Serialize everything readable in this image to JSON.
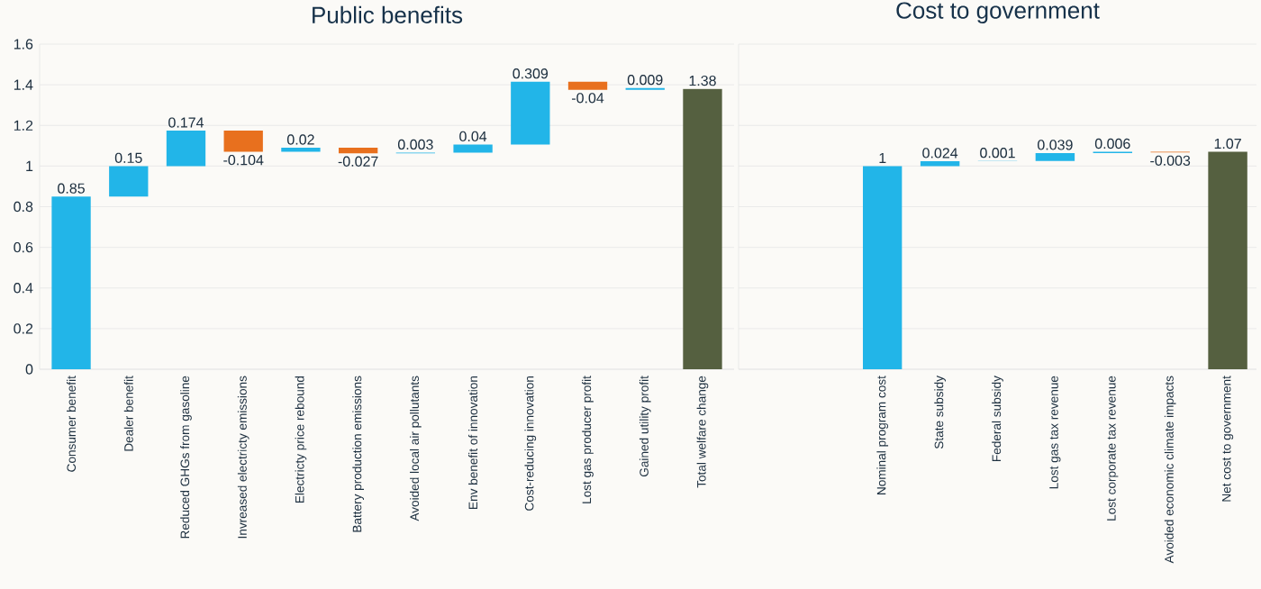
{
  "chart_data": [
    {
      "type": "bar",
      "title": "Public benefits",
      "categories": [
        "Consumer benefit",
        "Dealer benefit",
        "Reduced GHGs from gasoline",
        "Invreased electricty emissions",
        "Electricty price rebound",
        "Battery production emissions",
        "Avoided local air pollutants",
        "Env benefit of innovation",
        "Cost-reducing innovation",
        "Lost gas producer profit",
        "Gained utility profit",
        "Total welfare change"
      ],
      "values": [
        0.85,
        0.15,
        0.174,
        -0.104,
        0.02,
        -0.027,
        0.003,
        0.04,
        0.309,
        -0.04,
        0.009,
        1.38
      ],
      "base": [
        0,
        0.85,
        1.0,
        1.174,
        1.07,
        1.09,
        1.063,
        1.066,
        1.106,
        1.415,
        1.375,
        0
      ],
      "colors": [
        "#22b5e8",
        "#22b5e8",
        "#22b5e8",
        "#e8701e",
        "#22b5e8",
        "#e8701e",
        "#22b5e8",
        "#22b5e8",
        "#22b5e8",
        "#e8701e",
        "#22b5e8",
        "#556040"
      ],
      "ylim": [
        0,
        1.6
      ],
      "yticks": [
        0,
        0.2,
        0.4,
        0.6,
        0.8,
        1,
        1.2,
        1.4,
        1.6
      ],
      "grid": "y",
      "data_labels": true
    },
    {
      "type": "bar",
      "title": "Cost to government",
      "categories": [
        null,
        null,
        "Nominal program cost",
        "State subsidy",
        "Federal subsidy",
        "Lost gas tax revenue",
        "Lost corporate tax revenue",
        "Avoided economic climate impacts",
        "Net cost to government"
      ],
      "values": [
        null,
        null,
        1,
        0.024,
        0.001,
        0.039,
        0.006,
        -0.003,
        1.07
      ],
      "base": [
        null,
        null,
        0,
        1.0,
        1.024,
        1.025,
        1.064,
        1.07,
        0
      ],
      "colors": [
        null,
        null,
        "#22b5e8",
        "#22b5e8",
        "#22b5e8",
        "#22b5e8",
        "#22b5e8",
        "#e8701e",
        "#556040"
      ],
      "ylim": [
        0,
        1.6
      ],
      "yticks": [
        0,
        0.2,
        0.4,
        0.6,
        0.8,
        1,
        1.2,
        1.4,
        1.6
      ],
      "grid": "y",
      "data_labels": true,
      "tick_labels": "x"
    }
  ]
}
